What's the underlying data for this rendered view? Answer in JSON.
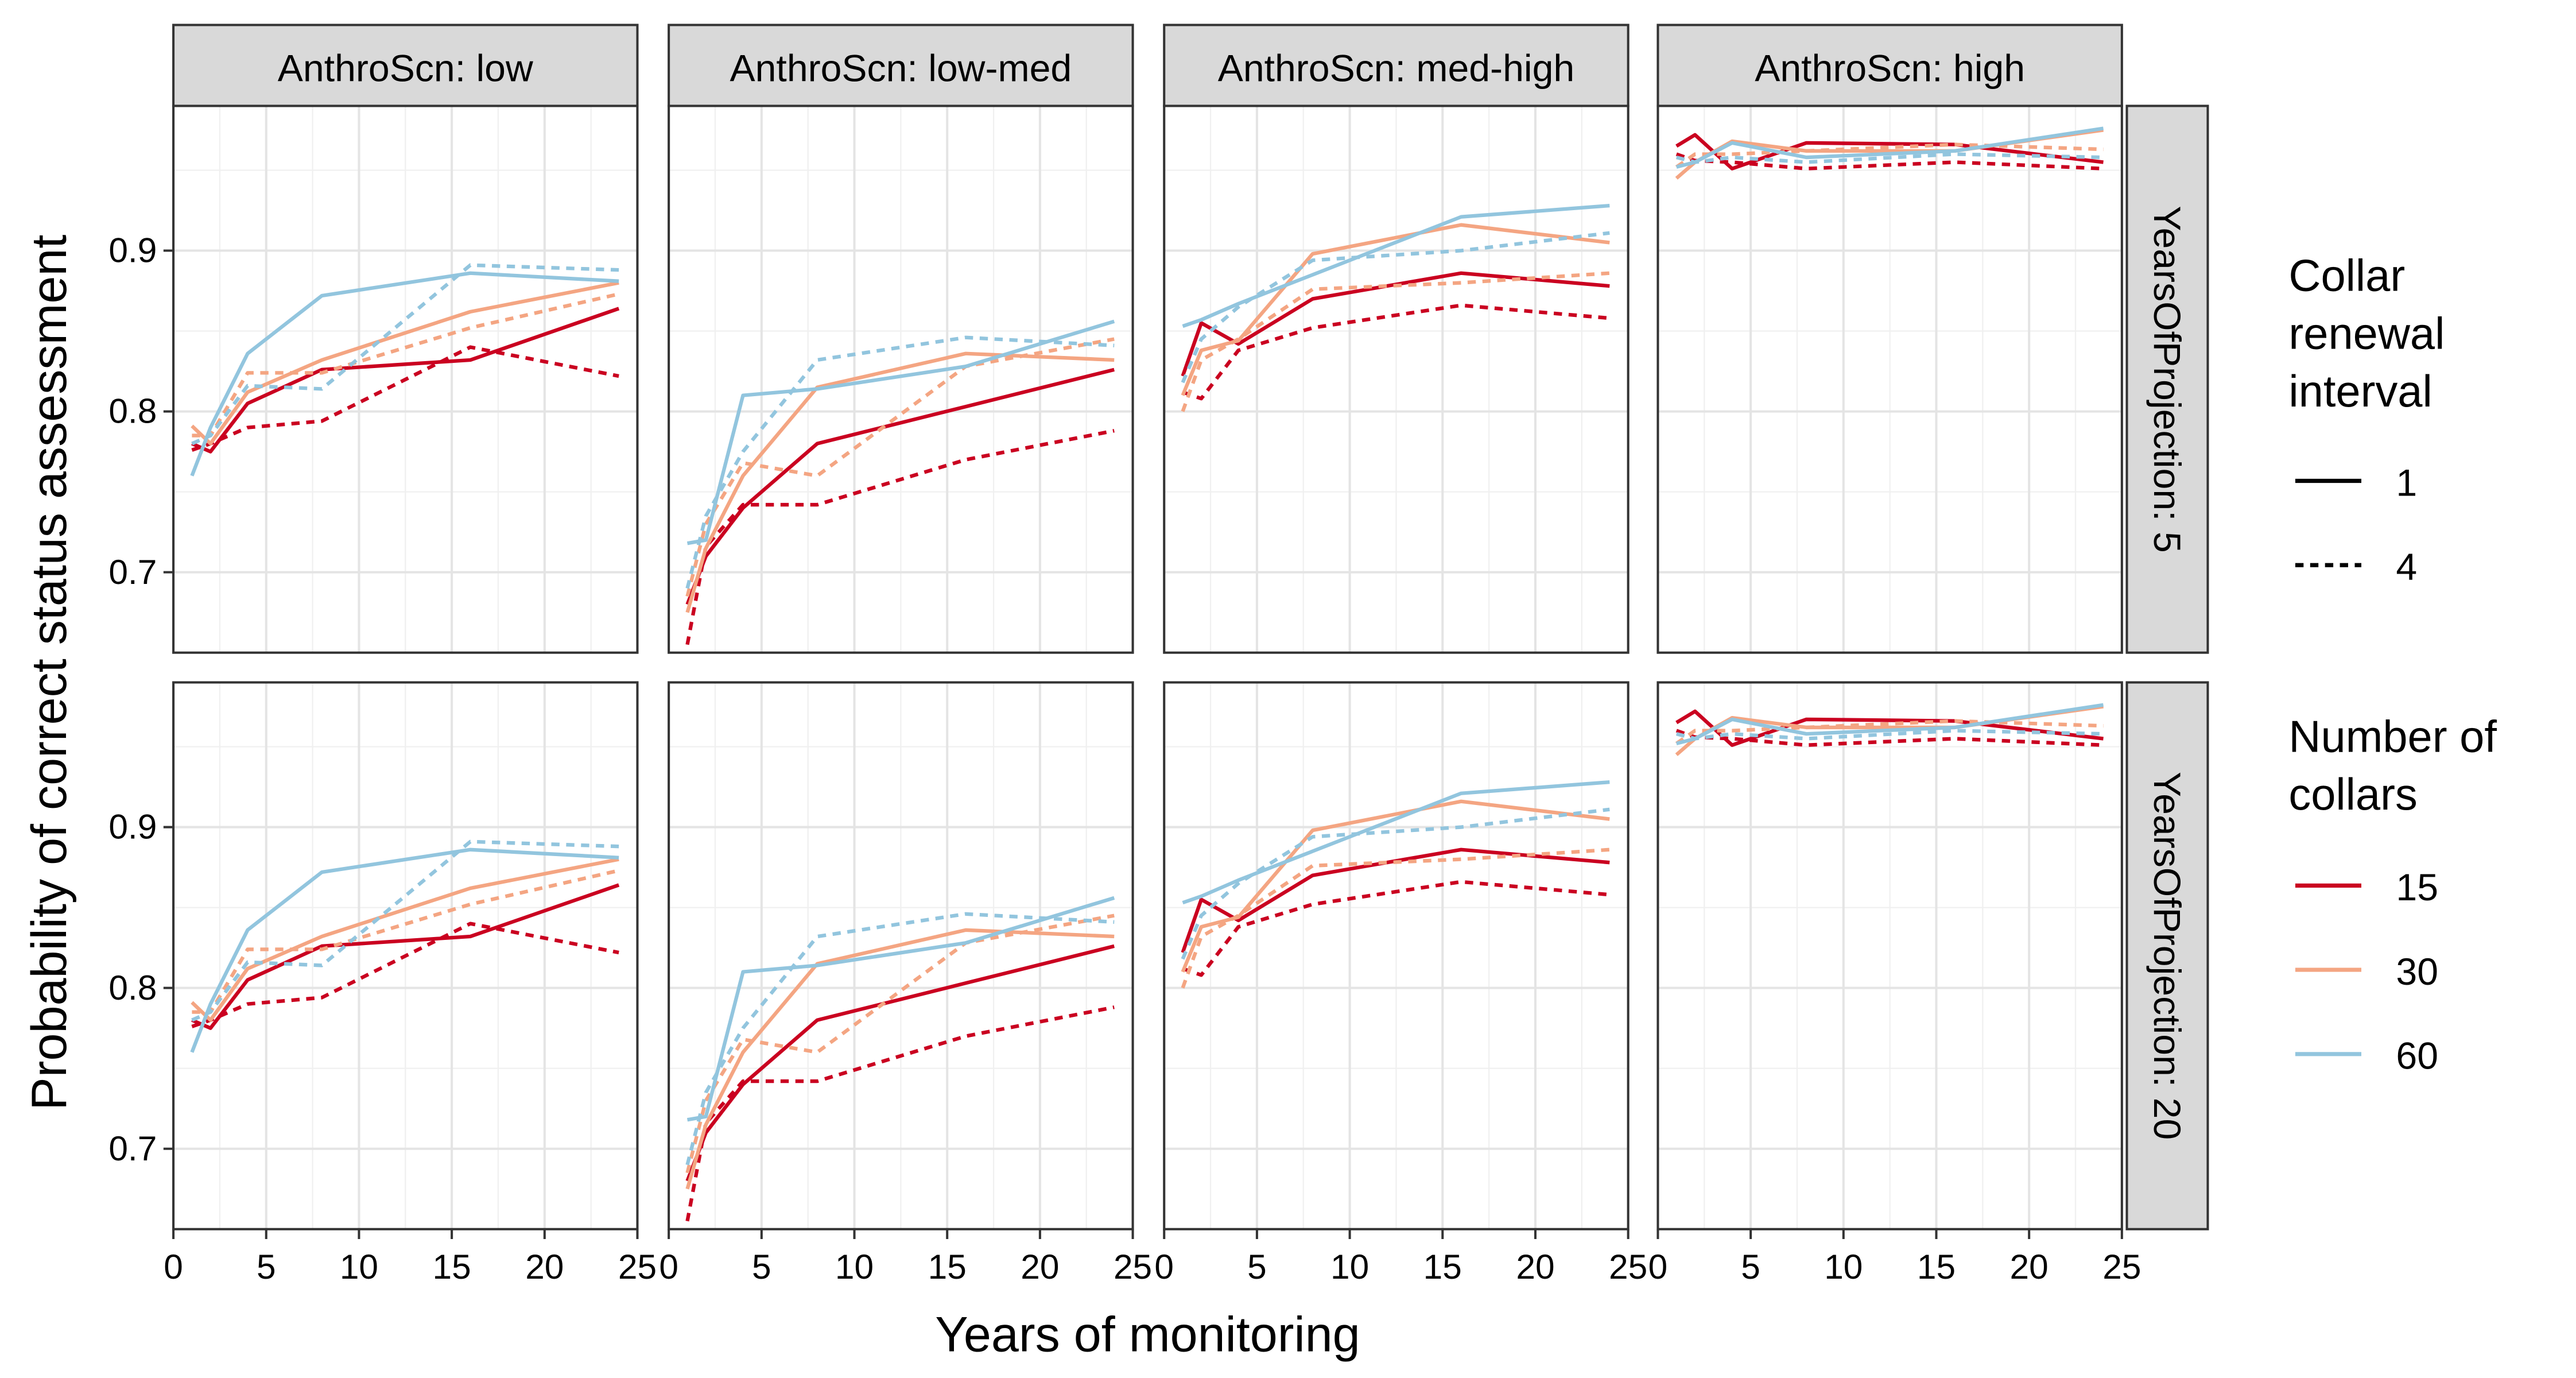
{
  "chart_data": {
    "type": "line",
    "xlabel": "Years of monitoring",
    "ylabel": "Probability of correct status assessment",
    "xlim": [
      0,
      25
    ],
    "ylim": [
      0.65,
      0.99
    ],
    "xticks": [
      0,
      5,
      10,
      15,
      20,
      25
    ],
    "yticks": [
      0.7,
      0.8,
      0.9
    ],
    "x": [
      1,
      2,
      4,
      8,
      16,
      24
    ],
    "grid": true,
    "legend_position": "right",
    "columns": [
      "AnthroScn: low",
      "AnthroScn: low-med",
      "AnthroScn: med-high",
      "AnthroScn: high"
    ],
    "rows": [
      "YearsOfProjection: 5",
      "YearsOfProjection: 20"
    ],
    "legend": {
      "linetype_title": "Collar renewal interval",
      "linetype_title_lines": [
        "Collar",
        "renewal",
        "interval"
      ],
      "linetypes": [
        {
          "label": "1",
          "style": "solid"
        },
        {
          "label": "4",
          "style": "dashed"
        }
      ],
      "color_title": "Number of collars",
      "color_title_lines": [
        "Number of",
        "collars"
      ],
      "colors": [
        {
          "label": "15",
          "color": "#CA0020"
        },
        {
          "label": "30",
          "color": "#F4A582"
        },
        {
          "label": "60",
          "color": "#92C5DE"
        }
      ]
    },
    "panels": [
      {
        "column": "AnthroScn: low",
        "series": [
          {
            "collars": "15",
            "interval": "1",
            "values": [
              0.78,
              0.775,
              0.805,
              0.826,
              0.832,
              0.864
            ]
          },
          {
            "collars": "15",
            "interval": "4",
            "values": [
              0.776,
              0.78,
              0.79,
              0.794,
              0.84,
              0.822
            ]
          },
          {
            "collars": "30",
            "interval": "1",
            "values": [
              0.791,
              0.78,
              0.812,
              0.832,
              0.862,
              0.88
            ]
          },
          {
            "collars": "30",
            "interval": "4",
            "values": [
              0.785,
              0.785,
              0.824,
              0.824,
              0.852,
              0.873
            ]
          },
          {
            "collars": "60",
            "interval": "1",
            "values": [
              0.76,
              0.79,
              0.836,
              0.872,
              0.886,
              0.881
            ]
          },
          {
            "collars": "60",
            "interval": "4",
            "values": [
              0.78,
              0.785,
              0.816,
              0.814,
              0.891,
              0.888
            ]
          }
        ]
      },
      {
        "column": "AnthroScn: low-med",
        "series": [
          {
            "collars": "15",
            "interval": "1",
            "values": [
              0.68,
              0.71,
              0.74,
              0.78,
              0.803,
              0.826
            ]
          },
          {
            "collars": "15",
            "interval": "4",
            "values": [
              0.655,
              0.716,
              0.742,
              0.742,
              0.77,
              0.788
            ]
          },
          {
            "collars": "30",
            "interval": "1",
            "values": [
              0.675,
              0.715,
              0.76,
              0.815,
              0.836,
              0.832
            ]
          },
          {
            "collars": "30",
            "interval": "4",
            "values": [
              0.685,
              0.73,
              0.768,
              0.76,
              0.828,
              0.845
            ]
          },
          {
            "collars": "60",
            "interval": "1",
            "values": [
              0.718,
              0.72,
              0.81,
              0.814,
              0.828,
              0.856
            ]
          },
          {
            "collars": "60",
            "interval": "4",
            "values": [
              0.69,
              0.735,
              0.775,
              0.832,
              0.846,
              0.841
            ]
          }
        ]
      },
      {
        "column": "AnthroScn: med-high",
        "series": [
          {
            "collars": "15",
            "interval": "1",
            "values": [
              0.822,
              0.855,
              0.842,
              0.87,
              0.886,
              0.878
            ]
          },
          {
            "collars": "15",
            "interval": "4",
            "values": [
              0.812,
              0.808,
              0.838,
              0.852,
              0.866,
              0.858
            ]
          },
          {
            "collars": "30",
            "interval": "1",
            "values": [
              0.81,
              0.838,
              0.844,
              0.898,
              0.916,
              0.905
            ]
          },
          {
            "collars": "30",
            "interval": "4",
            "values": [
              0.8,
              0.832,
              0.845,
              0.876,
              0.88,
              0.886
            ]
          },
          {
            "collars": "60",
            "interval": "1",
            "values": [
              0.853,
              0.857,
              0.867,
              0.885,
              0.921,
              0.928
            ]
          },
          {
            "collars": "60",
            "interval": "4",
            "values": [
              0.818,
              0.845,
              0.865,
              0.894,
              0.9,
              0.911
            ]
          }
        ]
      },
      {
        "column": "AnthroScn: high",
        "series": [
          {
            "collars": "15",
            "interval": "1",
            "values": [
              0.965,
              0.972,
              0.951,
              0.967,
              0.966,
              0.955
            ]
          },
          {
            "collars": "15",
            "interval": "4",
            "values": [
              0.96,
              0.956,
              0.955,
              0.951,
              0.955,
              0.951
            ]
          },
          {
            "collars": "30",
            "interval": "1",
            "values": [
              0.945,
              0.955,
              0.968,
              0.962,
              0.962,
              0.975
            ]
          },
          {
            "collars": "30",
            "interval": "4",
            "values": [
              0.952,
              0.96,
              0.96,
              0.962,
              0.966,
              0.963
            ]
          },
          {
            "collars": "60",
            "interval": "1",
            "values": [
              0.952,
              0.955,
              0.967,
              0.958,
              0.962,
              0.976
            ]
          },
          {
            "collars": "60",
            "interval": "4",
            "values": [
              0.958,
              0.955,
              0.958,
              0.955,
              0.96,
              0.958
            ]
          }
        ]
      }
    ]
  }
}
